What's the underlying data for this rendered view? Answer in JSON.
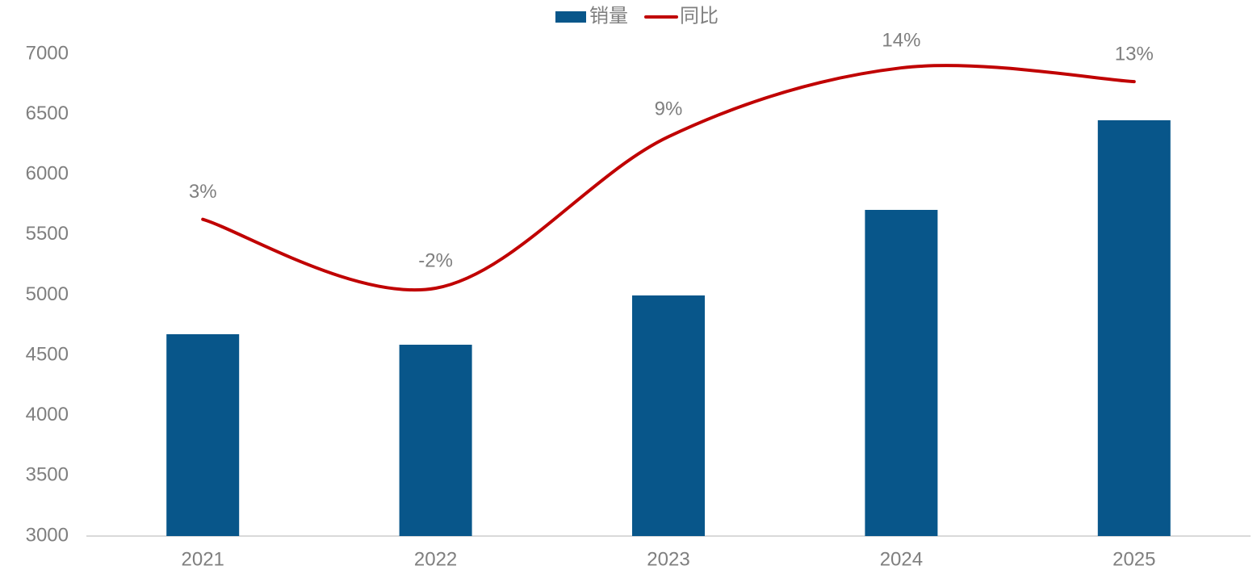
{
  "chart_data": {
    "type": "bar",
    "categories": [
      "2021",
      "2022",
      "2023",
      "2024",
      "2025"
    ],
    "series": [
      {
        "name": "销量",
        "type": "bar",
        "color": "#08568a",
        "values": [
          4675,
          4588,
          4997,
          5707,
          6451
        ]
      },
      {
        "name": "同比",
        "type": "line",
        "axis": "y2",
        "color": "#c00000",
        "values": [
          3,
          -2,
          9,
          14,
          13
        ],
        "value_labels": [
          "3%",
          "-2%",
          "9%",
          "14%",
          "13%"
        ]
      }
    ],
    "ylim": [
      3000,
      7000
    ],
    "yticks": [
      3000,
      3500,
      4000,
      4500,
      5000,
      5500,
      6000,
      6500,
      7000
    ],
    "y2lim": [
      -20,
      15
    ],
    "legend": "top"
  }
}
